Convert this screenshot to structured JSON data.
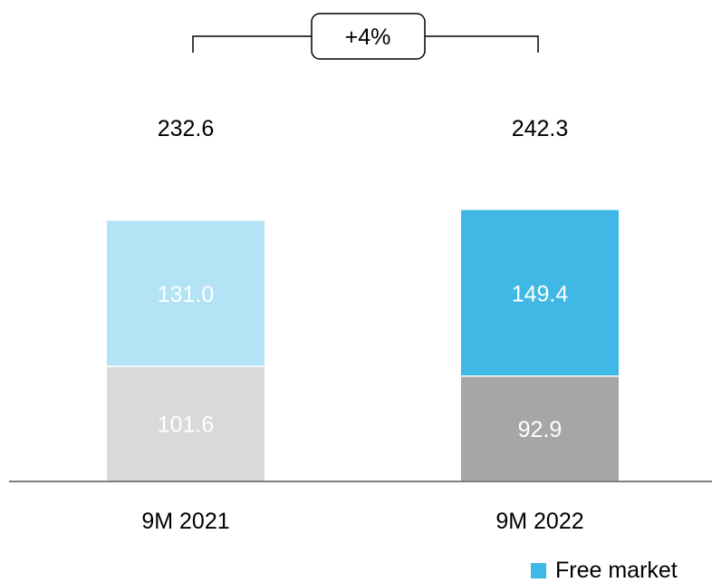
{
  "chart_data": {
    "type": "bar",
    "stacked": true,
    "categories": [
      "9M 2021",
      "9M 2022"
    ],
    "series": [
      {
        "values": [
          101.6,
          92.9
        ],
        "colors": [
          "#d9d9d9",
          "#a6a6a6"
        ],
        "label_color": "#ffffff"
      },
      {
        "name": "Free market",
        "values": [
          131.0,
          149.4
        ],
        "colors": [
          "#b3e3f4",
          "#3fb8e5"
        ],
        "label_color": "#ffffff"
      }
    ],
    "value_labels": [
      [
        "101.6",
        "92.9"
      ],
      [
        "131.0",
        "149.4"
      ]
    ],
    "totals": [
      232.6,
      242.3
    ],
    "total_labels": [
      "232.6",
      "242.3"
    ],
    "growth_label": "+4%",
    "legend": {
      "position": "bottom-right",
      "entries": [
        "Free market"
      ]
    },
    "grid": false
  },
  "legend": {
    "label": "Free market",
    "color": "#3fb8e5"
  }
}
